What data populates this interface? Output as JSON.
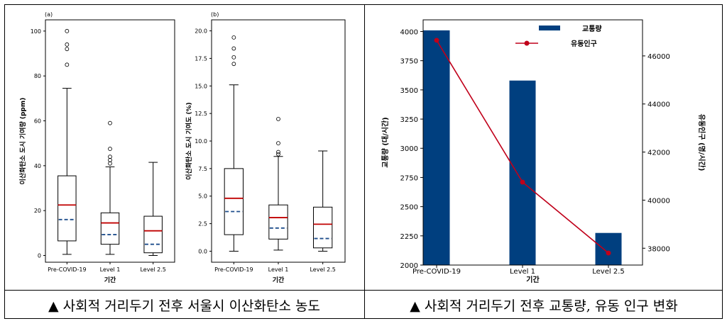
{
  "captions": {
    "left": "▲ 사회적 거리두기 전후 서울시 이산화탄소 농도",
    "right": "▲ 사회적 거리두기 전후 교통량, 유동 인구 변화"
  },
  "chart_data": [
    {
      "type": "boxplot",
      "panel_label": "(a)",
      "xlabel": "기간",
      "ylabel": "이산화탄소 도시 기여량 (ppm)",
      "categories": [
        "Pre-COVID-19",
        "Level 1",
        "Level 2.5"
      ],
      "ylim": [
        -3,
        105
      ],
      "yticks": [
        0,
        20,
        40,
        60,
        80,
        100
      ],
      "boxes": [
        {
          "whislo": 0.5,
          "q1": 6.5,
          "med": 22.5,
          "mean": 16,
          "q3": 35.5,
          "whishi": 74.5,
          "fliers": [
            85,
            92,
            94,
            100
          ]
        },
        {
          "whislo": 0.5,
          "q1": 5,
          "med": 14.5,
          "mean": 9.3,
          "q3": 19,
          "whishi": 39.5,
          "fliers": [
            41,
            42.5,
            44,
            47.5,
            59
          ]
        },
        {
          "whislo": 0,
          "q1": 1.2,
          "med": 11,
          "mean": 5,
          "q3": 17.5,
          "whishi": 41.5,
          "fliers": []
        }
      ],
      "median_color": "#c00000",
      "mean_color": "#1f4e8c"
    },
    {
      "type": "boxplot",
      "panel_label": "(b)",
      "xlabel": "기간",
      "ylabel": "이산화탄소 도시 기여도 (%)",
      "categories": [
        "Pre-COVID-19",
        "Level 1",
        "Level 2.5"
      ],
      "ylim": [
        -1,
        21
      ],
      "yticks": [
        0.0,
        2.5,
        5.0,
        7.5,
        10.0,
        12.5,
        15.0,
        17.5,
        20.0
      ],
      "ytick_labels": [
        "0.0",
        "2.5",
        "5.0",
        "7.5",
        "10.0",
        "12.5",
        "15.0",
        "17.5",
        "20.0"
      ],
      "boxes": [
        {
          "whislo": 0,
          "q1": 1.5,
          "med": 4.8,
          "mean": 3.6,
          "q3": 7.5,
          "whishi": 15.1,
          "fliers": [
            17,
            17.6,
            18.4,
            19.4
          ]
        },
        {
          "whislo": 0.1,
          "q1": 1.1,
          "med": 3.05,
          "mean": 2.1,
          "q3": 4.2,
          "whishi": 8.6,
          "fliers": [
            8.8,
            9.0,
            9.8,
            12
          ]
        },
        {
          "whislo": 0,
          "q1": 0.3,
          "med": 2.45,
          "mean": 1.15,
          "q3": 4.0,
          "whishi": 9.1,
          "fliers": []
        }
      ],
      "median_color": "#c00000",
      "mean_color": "#1f4e8c"
    },
    {
      "type": "bar+line",
      "xlabel": "기간",
      "ylabel": "교통량 (대/시간)",
      "ylabel_right": "유동인구 (명/시간)",
      "categories": [
        "Pre-COVID-19",
        "Level 1",
        "Level 2.5"
      ],
      "ylim": [
        2000,
        4100
      ],
      "yticks": [
        2000,
        2250,
        2500,
        2750,
        3000,
        3250,
        3500,
        3750,
        4000
      ],
      "ylim_right": [
        37300,
        47500
      ],
      "yticks_right": [
        38000,
        40000,
        42000,
        44000,
        46000
      ],
      "series": [
        {
          "name": "교통량",
          "kind": "bar",
          "axis": "left",
          "values": [
            4010,
            3580,
            2275
          ],
          "color": "#003f7f"
        },
        {
          "name": "유동인구",
          "kind": "line",
          "axis": "right",
          "values": [
            46650,
            40750,
            37800
          ],
          "color": "#c0001a"
        }
      ],
      "legend_position": "top-right"
    }
  ]
}
